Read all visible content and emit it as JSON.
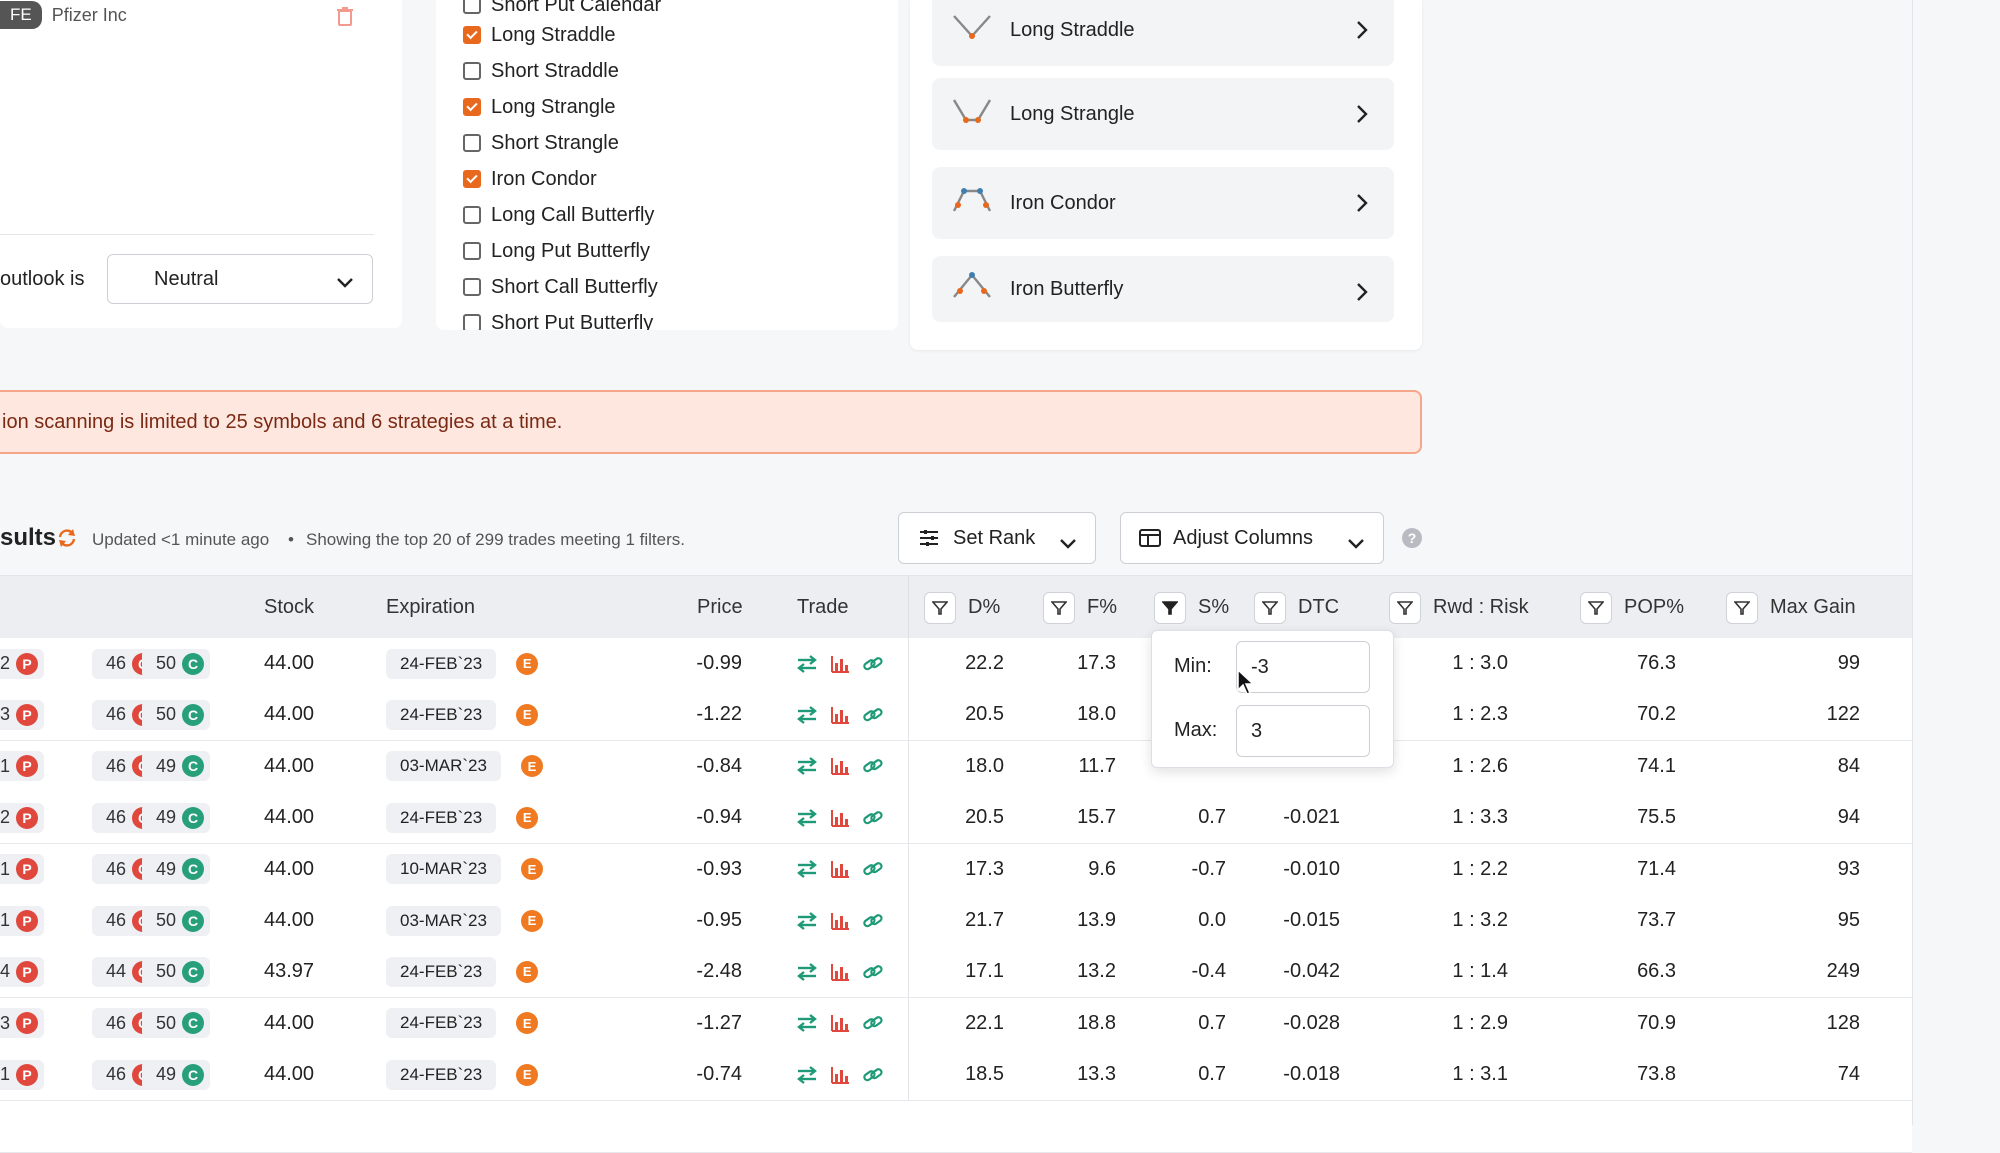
{
  "symbol": {
    "ticker": "FE",
    "name": "Pfizer Inc"
  },
  "outlook": {
    "label": "outlook is",
    "value": "Neutral"
  },
  "strategies_checklist": [
    {
      "label": "Short Put Calendar",
      "checked": false
    },
    {
      "label": "Long Straddle",
      "checked": true
    },
    {
      "label": "Short Straddle",
      "checked": false
    },
    {
      "label": "Long Strangle",
      "checked": true
    },
    {
      "label": "Short Strangle",
      "checked": false
    },
    {
      "label": "Iron Condor",
      "checked": true
    },
    {
      "label": "Long Call Butterfly",
      "checked": false
    },
    {
      "label": "Long Put Butterfly",
      "checked": false
    },
    {
      "label": "Short Call Butterfly",
      "checked": false
    },
    {
      "label": "Short Put Butterfly",
      "checked": false
    }
  ],
  "selected_strategies": [
    {
      "label": "Long Straddle",
      "icon": "long-straddle-icon"
    },
    {
      "label": "Long Strangle",
      "icon": "long-strangle-icon"
    },
    {
      "label": "Iron Condor",
      "icon": "iron-condor-icon"
    },
    {
      "label": "Iron Butterfly",
      "icon": "iron-butterfly-icon"
    }
  ],
  "alert": {
    "text": "ion scanning is limited to 25 symbols and 6 strategies at a time."
  },
  "results": {
    "title": "sults",
    "updated": "Updated <1 minute ago",
    "bullet": "•",
    "summary": "Showing the top 20 of 299 trades meeting 1 filters.",
    "set_rank": "Set Rank",
    "adjust_columns": "Adjust Columns",
    "help": "?"
  },
  "columns": {
    "stock": "Stock",
    "expiration": "Expiration",
    "price": "Price",
    "trade": "Trade",
    "d": "D%",
    "f": "F%",
    "s": "S%",
    "dtc": "DTC",
    "rr": "Rwd : Risk",
    "pop": "POP%",
    "maxgain": "Max Gain"
  },
  "filter_popup": {
    "min_label": "Min:",
    "min_value": "-3",
    "max_label": "Max:",
    "max_value": "3"
  },
  "rows": [
    {
      "p": "2",
      "c1": "46",
      "c2": "50",
      "stock": "44.00",
      "exp": "24-FEB`23",
      "price": "-0.99",
      "d": "22.2",
      "f": "17.3",
      "s": "",
      "dtc": "",
      "rr": "1 : 3.0",
      "pop": "76.3",
      "gain": "99"
    },
    {
      "p": "3",
      "c1": "46",
      "c2": "50",
      "stock": "44.00",
      "exp": "24-FEB`23",
      "price": "-1.22",
      "d": "20.5",
      "f": "18.0",
      "s": "",
      "dtc": "",
      "rr": "1 : 2.3",
      "pop": "70.2",
      "gain": "122"
    },
    {
      "p": "1",
      "c1": "46",
      "c2": "49",
      "stock": "44.00",
      "exp": "03-MAR`23",
      "price": "-0.84",
      "d": "18.0",
      "f": "11.7",
      "s": "",
      "dtc": "",
      "rr": "1 : 2.6",
      "pop": "74.1",
      "gain": "84"
    },
    {
      "p": "2",
      "c1": "46",
      "c2": "49",
      "stock": "44.00",
      "exp": "24-FEB`23",
      "price": "-0.94",
      "d": "20.5",
      "f": "15.7",
      "s": "0.7",
      "dtc": "-0.021",
      "rr": "1 : 3.3",
      "pop": "75.5",
      "gain": "94"
    },
    {
      "p": "1",
      "c1": "46",
      "c2": "49",
      "stock": "44.00",
      "exp": "10-MAR`23",
      "price": "-0.93",
      "d": "17.3",
      "f": "9.6",
      "s": "-0.7",
      "dtc": "-0.010",
      "rr": "1 : 2.2",
      "pop": "71.4",
      "gain": "93"
    },
    {
      "p": "1",
      "c1": "46",
      "c2": "50",
      "stock": "44.00",
      "exp": "03-MAR`23",
      "price": "-0.95",
      "d": "21.7",
      "f": "13.9",
      "s": "0.0",
      "dtc": "-0.015",
      "rr": "1 : 3.2",
      "pop": "73.7",
      "gain": "95"
    },
    {
      "p": "4",
      "c1": "44",
      "c2": "50",
      "stock": "43.97",
      "exp": "24-FEB`23",
      "price": "-2.48",
      "d": "17.1",
      "f": "13.2",
      "s": "-0.4",
      "dtc": "-0.042",
      "rr": "1 : 1.4",
      "pop": "66.3",
      "gain": "249"
    },
    {
      "p": "3",
      "c1": "46",
      "c2": "50",
      "stock": "44.00",
      "exp": "24-FEB`23",
      "price": "-1.27",
      "d": "22.1",
      "f": "18.8",
      "s": "0.7",
      "dtc": "-0.028",
      "rr": "1 : 2.9",
      "pop": "70.9",
      "gain": "128"
    },
    {
      "p": "1",
      "c1": "46",
      "c2": "49",
      "stock": "44.00",
      "exp": "24-FEB`23",
      "price": "-0.74",
      "d": "18.5",
      "f": "13.3",
      "s": "0.7",
      "dtc": "-0.018",
      "rr": "1 : 3.1",
      "pop": "73.8",
      "gain": "74"
    }
  ]
}
